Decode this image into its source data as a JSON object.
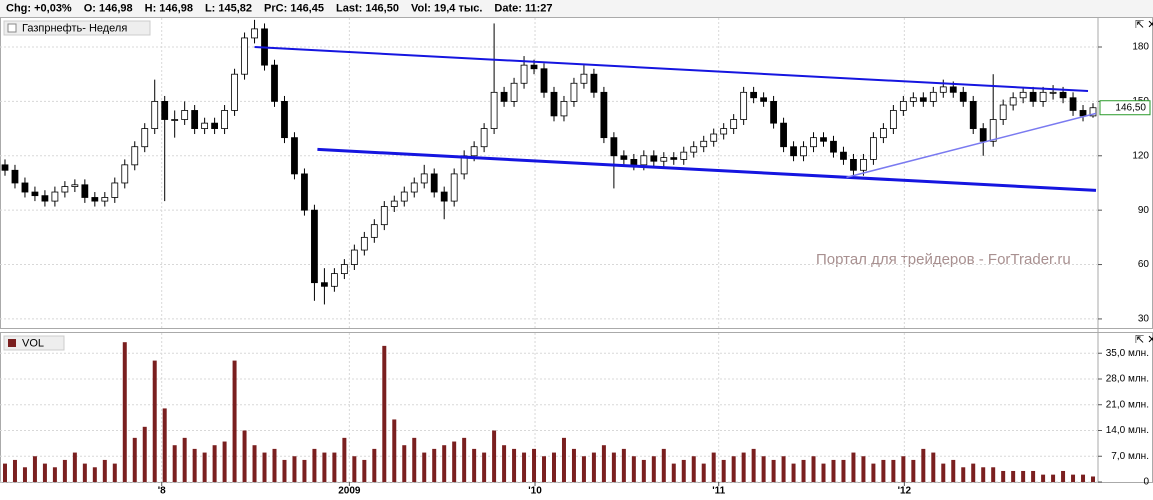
{
  "header": {
    "items": [
      "Chg: +0,03%",
      "O: 146,98",
      "H: 146,98",
      "L: 145,82",
      "PrC: 146,45",
      "Last: 146,50",
      "Vol: 19,4 тыс.",
      "Date: 11:27"
    ]
  },
  "watermark": "Портал для трейдеров - ForTrader.ru",
  "chart_data": [
    {
      "type": "candlestick",
      "legend": "Газпрнефть- Неделя",
      "open": [
        115,
        112,
        105,
        100,
        98,
        95,
        100,
        103,
        104,
        97,
        95,
        97,
        105,
        115,
        125,
        135,
        150,
        140,
        140,
        145,
        135,
        138,
        135,
        145,
        165,
        185,
        190,
        170,
        150,
        130,
        110,
        90,
        50,
        48,
        55,
        60,
        68,
        75,
        82,
        92,
        95,
        100,
        105,
        110,
        100,
        95,
        110,
        120,
        125,
        135,
        155,
        150,
        160,
        170,
        168,
        155,
        142,
        150,
        160,
        165,
        155,
        130,
        120,
        118,
        115,
        120,
        117,
        119,
        118,
        122,
        125,
        128,
        132,
        135,
        140,
        155,
        152,
        150,
        138,
        125,
        120,
        125,
        130,
        128,
        122,
        118,
        112,
        118,
        130,
        135,
        145,
        150,
        152,
        150,
        155,
        158,
        155,
        150,
        135,
        128,
        140,
        148,
        152,
        155,
        150,
        155,
        155,
        152,
        145,
        142
      ],
      "high": [
        118,
        115,
        108,
        103,
        101,
        103,
        106,
        107,
        107,
        100,
        100,
        108,
        118,
        128,
        138,
        162,
        153,
        145,
        150,
        148,
        141,
        141,
        148,
        168,
        188,
        195,
        193,
        173,
        153,
        133,
        113,
        93,
        58,
        58,
        63,
        71,
        78,
        85,
        95,
        98,
        103,
        108,
        115,
        113,
        103,
        113,
        123,
        128,
        138,
        193,
        158,
        163,
        175,
        173,
        171,
        158,
        153,
        163,
        170,
        168,
        158,
        133,
        123,
        121,
        123,
        123,
        122,
        122,
        125,
        128,
        131,
        135,
        138,
        143,
        158,
        158,
        155,
        153,
        141,
        128,
        128,
        133,
        133,
        131,
        125,
        121,
        121,
        133,
        138,
        148,
        153,
        155,
        155,
        158,
        162,
        161,
        158,
        153,
        138,
        165,
        151,
        155,
        158,
        158,
        158,
        159,
        158,
        155,
        148,
        149
      ],
      "low": [
        109,
        102,
        97,
        95,
        92,
        92,
        97,
        100,
        94,
        92,
        92,
        94,
        102,
        112,
        122,
        132,
        95,
        130,
        137,
        132,
        132,
        132,
        132,
        142,
        162,
        182,
        167,
        147,
        127,
        107,
        87,
        40,
        38,
        45,
        52,
        57,
        65,
        72,
        79,
        89,
        92,
        97,
        102,
        97,
        85,
        92,
        107,
        117,
        122,
        132,
        147,
        147,
        157,
        165,
        152,
        139,
        139,
        147,
        157,
        152,
        127,
        102,
        115,
        112,
        112,
        114,
        114,
        115,
        115,
        119,
        122,
        125,
        129,
        132,
        137,
        149,
        147,
        135,
        122,
        117,
        117,
        122,
        125,
        119,
        115,
        108,
        109,
        115,
        127,
        132,
        142,
        147,
        147,
        147,
        152,
        152,
        147,
        132,
        120,
        125,
        137,
        145,
        149,
        147,
        147,
        151,
        149,
        142,
        139,
        141
      ],
      "close": [
        112,
        105,
        100,
        98,
        95,
        100,
        103,
        104,
        97,
        95,
        97,
        105,
        115,
        125,
        135,
        150,
        140,
        140,
        145,
        135,
        138,
        135,
        145,
        165,
        185,
        190,
        170,
        150,
        130,
        110,
        90,
        50,
        48,
        55,
        60,
        68,
        75,
        82,
        92,
        95,
        100,
        105,
        110,
        100,
        95,
        110,
        120,
        125,
        135,
        155,
        150,
        160,
        170,
        168,
        155,
        142,
        150,
        160,
        165,
        155,
        130,
        120,
        118,
        115,
        120,
        117,
        119,
        118,
        122,
        125,
        128,
        132,
        135,
        140,
        155,
        152,
        150,
        138,
        125,
        120,
        125,
        130,
        128,
        122,
        118,
        112,
        118,
        130,
        135,
        145,
        150,
        152,
        150,
        155,
        158,
        155,
        150,
        135,
        128,
        140,
        148,
        152,
        155,
        150,
        155,
        155,
        152,
        145,
        142,
        146.5
      ],
      "ylim": [
        25,
        196
      ],
      "yticks": [
        180,
        150,
        120,
        90,
        60,
        30
      ],
      "xlim": [
        -0.5,
        109.5
      ],
      "xticks": [
        {
          "value": 15.7,
          "label": "'8"
        },
        {
          "value": 34.5,
          "label": "2009"
        },
        {
          "value": 53.1,
          "label": "'10"
        },
        {
          "value": 71.5,
          "label": "'11"
        },
        {
          "value": 90.1,
          "label": "'12"
        }
      ],
      "last_price": {
        "value": 146.5,
        "label": "146,50"
      },
      "trend_lines": [
        {
          "color": "#1515e0",
          "width": 2,
          "x": [
            25,
            108.5
          ],
          "y": [
            180,
            155.7
          ]
        },
        {
          "color": "#1515e0",
          "width": 3,
          "x": [
            31.3,
            109.3
          ],
          "y": [
            123.5,
            100.9
          ]
        },
        {
          "color": "#7a7af0",
          "width": 1.5,
          "x": [
            84.3,
            109.3
          ],
          "y": [
            108.1,
            143.4
          ]
        }
      ],
      "grid": true
    },
    {
      "type": "bar",
      "legend": "VOL",
      "color": "#7a1f1f",
      "values": [
        5,
        6,
        4,
        7,
        5,
        4,
        6,
        8,
        5,
        4,
        6,
        5,
        38,
        12,
        15,
        33,
        20,
        10,
        12,
        9,
        8,
        10,
        11,
        33,
        14,
        10,
        8,
        9,
        6,
        7,
        6,
        9,
        8,
        8,
        12,
        7,
        6,
        9,
        37,
        17,
        10,
        12,
        8,
        9,
        10,
        11,
        12,
        9,
        8,
        14,
        10,
        9,
        8,
        9,
        7,
        8,
        12,
        9,
        7,
        8,
        10,
        8,
        9,
        7,
        6,
        7,
        9,
        5,
        6,
        7,
        5,
        8,
        6,
        7,
        8,
        9,
        7,
        6,
        7,
        5,
        6,
        7,
        5,
        6,
        6,
        8,
        7,
        5,
        6,
        6,
        7,
        6,
        9,
        8,
        5,
        6,
        4,
        5,
        4,
        4,
        3,
        3,
        3,
        3,
        2,
        2,
        3,
        2,
        2,
        1.5
      ],
      "ylim": [
        0,
        40.5
      ],
      "yticks": [
        {
          "value": 35,
          "label": "35,0 млн."
        },
        {
          "value": 28,
          "label": "28,0 млн."
        },
        {
          "value": 21,
          "label": "21,0 млн."
        },
        {
          "value": 14,
          "label": "14,0 млн."
        },
        {
          "value": 7,
          "label": "7,0 млн."
        },
        0
      ],
      "grid": true
    }
  ]
}
